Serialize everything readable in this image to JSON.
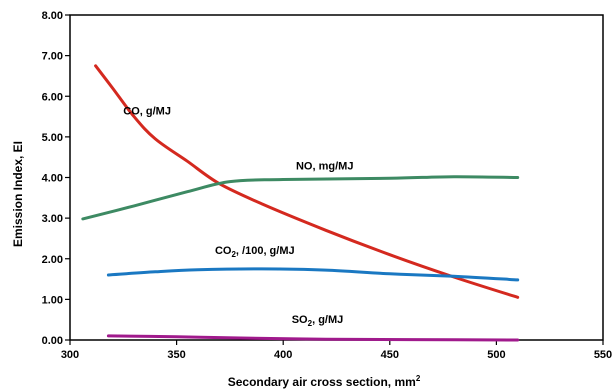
{
  "chart_data": {
    "type": "line",
    "title": "",
    "xlabel": "Secondary air cross section, mm",
    "xlabel_sup": "2",
    "ylabel": "Emission Index, EI",
    "xlim": [
      300,
      550
    ],
    "ylim": [
      0,
      8
    ],
    "x_ticks": [
      300,
      350,
      400,
      450,
      500,
      550
    ],
    "y_ticks": [
      0,
      1,
      2,
      3,
      4,
      5,
      6,
      7,
      8
    ],
    "x_tick_labels": [
      "300",
      "350",
      "400",
      "450",
      "500",
      "550"
    ],
    "y_tick_labels": [
      "0.00",
      "1.00",
      "2.00",
      "3.00",
      "4.00",
      "5.00",
      "6.00",
      "7.00",
      "8.00"
    ],
    "grid": false,
    "legend": "none",
    "series": [
      {
        "id": "co",
        "label": "CO, g/MJ",
        "label_sub": "",
        "label_rest": "",
        "color": "#d4291f",
        "label_at": [
          325,
          5.55
        ],
        "x": [
          312,
          320,
          330,
          340,
          355,
          370,
          390,
          420,
          450,
          480,
          510
        ],
        "y": [
          6.75,
          6.2,
          5.5,
          4.95,
          4.4,
          3.85,
          3.35,
          2.7,
          2.1,
          1.55,
          1.05
        ]
      },
      {
        "id": "no",
        "label": "NO, mg/MJ",
        "label_sub": "",
        "label_rest": "",
        "color": "#3d8a63",
        "label_at": [
          406,
          4.2
        ],
        "x": [
          306,
          330,
          355,
          375,
          400,
          450,
          480,
          510
        ],
        "y": [
          2.98,
          3.3,
          3.65,
          3.9,
          3.95,
          3.98,
          4.02,
          4.0
        ]
      },
      {
        "id": "co2",
        "label": "CO",
        "label_sub": "2",
        "label_rest": ", /100, g/MJ",
        "color": "#1a78c2",
        "label_at": [
          368,
          2.12
        ],
        "x": [
          318,
          340,
          360,
          390,
          420,
          450,
          480,
          510
        ],
        "y": [
          1.6,
          1.68,
          1.73,
          1.75,
          1.72,
          1.63,
          1.57,
          1.48
        ]
      },
      {
        "id": "so2",
        "label": "SO",
        "label_sub": "2",
        "label_rest": ", g/MJ",
        "color": "#a01a8c",
        "label_at": [
          404,
          0.42
        ],
        "x": [
          318,
          350,
          380,
          420,
          460,
          510
        ],
        "y": [
          0.1,
          0.08,
          0.05,
          0.02,
          0.01,
          0.0
        ]
      }
    ]
  }
}
